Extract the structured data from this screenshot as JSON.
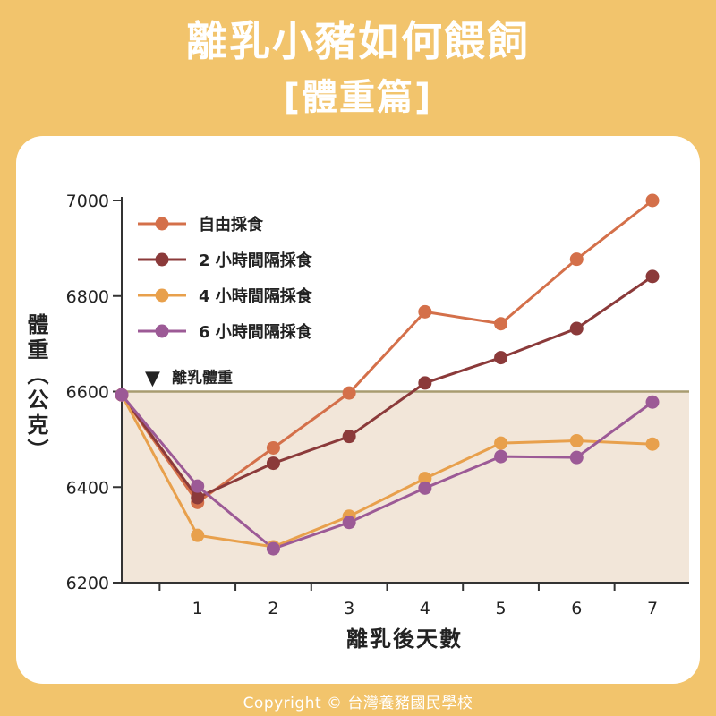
{
  "header": {
    "title": "離乳小豬如何餵飼",
    "subtitle": "[體重篇]"
  },
  "footer": {
    "copyright": "Copyright © 台灣養豬國民學校"
  },
  "colors": {
    "background": "#f2c46c",
    "panel": "#ffffff",
    "shaded_region": "#f2e6d9",
    "reference_line": "#a89c70"
  },
  "chart_data": {
    "type": "line",
    "title": "",
    "xlabel": "離乳後天數",
    "ylabel": "體重（公克）",
    "x": [
      0,
      1,
      2,
      3,
      4,
      5,
      6,
      7
    ],
    "x_tick_labels": [
      "",
      "1",
      "2",
      "3",
      "4",
      "5",
      "6",
      "7"
    ],
    "ylim": [
      6200,
      7000
    ],
    "y_ticks": [
      6200,
      6400,
      6600,
      6800,
      7000
    ],
    "grid": false,
    "legend_position": "top-left",
    "reference_line": {
      "y": 6600,
      "label": "離乳體重",
      "marker": "▼"
    },
    "series": [
      {
        "name": "自由採食",
        "color": "#d4704a",
        "values": [
          6593,
          6368,
          6482,
          6597,
          6767,
          6742,
          6877,
          7000
        ]
      },
      {
        "name": "2 小時間隔採食",
        "color": "#8b3a3a",
        "values": [
          6593,
          6378,
          6450,
          6506,
          6618,
          6671,
          6732,
          6841
        ]
      },
      {
        "name": "4 小時間隔採食",
        "color": "#e8a04c",
        "values": [
          6593,
          6299,
          6275,
          6339,
          6418,
          6492,
          6497,
          6490
        ]
      },
      {
        "name": "6 小時間隔採食",
        "color": "#9c5a96",
        "values": [
          6593,
          6402,
          6271,
          6326,
          6398,
          6464,
          6462,
          6578
        ]
      }
    ]
  }
}
